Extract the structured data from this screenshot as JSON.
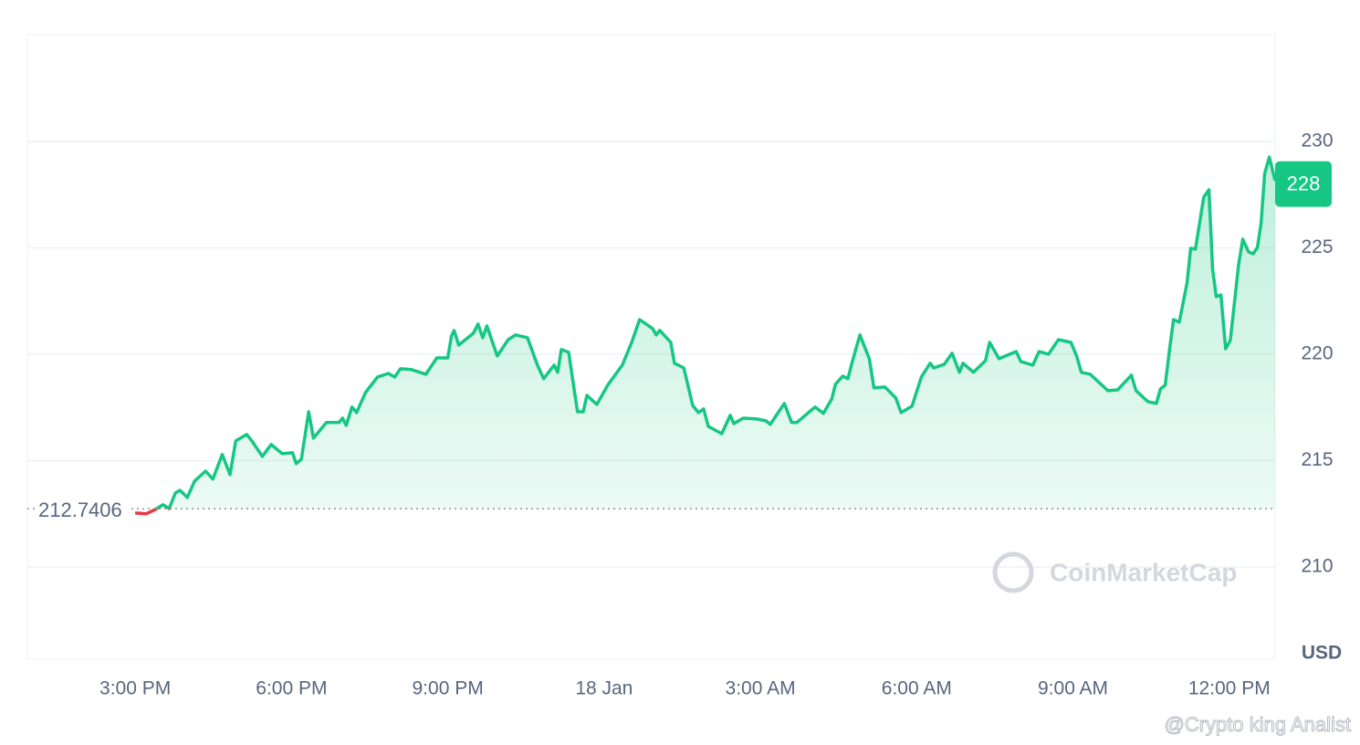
{
  "chart_data": {
    "type": "line",
    "x": [
      15.0,
      15.21,
      15.39,
      15.53,
      15.65,
      15.77,
      15.86,
      16.0,
      16.14,
      16.35,
      16.49,
      16.67,
      16.82,
      16.93,
      17.14,
      17.25,
      17.44,
      17.61,
      17.82,
      18.02,
      18.09,
      18.19,
      18.33,
      18.42,
      18.67,
      18.91,
      18.98,
      19.05,
      19.16,
      19.25,
      19.42,
      19.65,
      19.86,
      19.98,
      20.09,
      20.3,
      20.58,
      20.79,
      21.0,
      21.07,
      21.12,
      21.21,
      21.49,
      21.58,
      21.67,
      21.75,
      21.95,
      22.16,
      22.3,
      22.53,
      22.72,
      22.84,
      23.04,
      23.11,
      23.18,
      23.32,
      23.49,
      23.6,
      23.67,
      23.86,
      24.07,
      24.35,
      24.53,
      24.68,
      24.93,
      25.0,
      25.07,
      25.28,
      25.35,
      25.53,
      25.7,
      25.81,
      25.91,
      26.0,
      26.26,
      26.42,
      26.49,
      26.67,
      26.93,
      27.11,
      27.19,
      27.46,
      27.6,
      27.7,
      28.05,
      28.21,
      28.37,
      28.44,
      28.58,
      28.68,
      28.75,
      28.91,
      29.09,
      29.18,
      29.39,
      29.6,
      29.7,
      29.91,
      30.09,
      30.26,
      30.33,
      30.53,
      30.68,
      30.82,
      30.89,
      31.09,
      31.32,
      31.4,
      31.58,
      31.91,
      32.0,
      32.23,
      32.35,
      32.53,
      32.72,
      32.96,
      33.07,
      33.16,
      33.33,
      33.67,
      33.86,
      34.12,
      34.21,
      34.44,
      34.6,
      34.68,
      34.77,
      34.86,
      34.93,
      35.04,
      35.19,
      35.26,
      35.35,
      35.51,
      35.61,
      35.68,
      35.75,
      35.84,
      35.93,
      36.02,
      36.18,
      36.26,
      36.37,
      36.46,
      36.54,
      36.61,
      36.68,
      36.77,
      36.88
    ],
    "values": [
      212.54,
      212.5,
      212.71,
      212.93,
      212.75,
      213.48,
      213.61,
      213.27,
      214.04,
      214.51,
      214.13,
      215.29,
      214.34,
      215.93,
      216.23,
      215.89,
      215.2,
      215.76,
      215.33,
      215.37,
      214.86,
      215.07,
      217.3,
      216.06,
      216.79,
      216.79,
      217.0,
      216.66,
      217.52,
      217.26,
      218.2,
      218.93,
      219.1,
      218.93,
      219.32,
      219.28,
      219.06,
      219.83,
      219.83,
      220.86,
      221.12,
      220.43,
      220.99,
      221.42,
      220.78,
      221.33,
      219.92,
      220.69,
      220.91,
      220.78,
      219.49,
      218.85,
      219.49,
      219.15,
      220.22,
      220.09,
      217.3,
      217.3,
      218.07,
      217.64,
      218.55,
      219.49,
      220.56,
      221.63,
      221.21,
      220.91,
      221.12,
      220.56,
      219.58,
      219.36,
      217.6,
      217.26,
      217.43,
      216.61,
      216.27,
      217.13,
      216.74,
      217.0,
      216.96,
      216.87,
      216.7,
      217.69,
      216.79,
      216.79,
      217.52,
      217.22,
      217.9,
      218.59,
      218.97,
      218.85,
      219.53,
      220.91,
      219.79,
      218.42,
      218.46,
      217.94,
      217.26,
      217.56,
      218.93,
      219.58,
      219.36,
      219.53,
      220.05,
      219.15,
      219.58,
      219.15,
      219.7,
      220.56,
      219.79,
      220.13,
      219.66,
      219.49,
      220.13,
      220.0,
      220.69,
      220.56,
      219.92,
      219.15,
      219.06,
      218.29,
      218.33,
      219.02,
      218.29,
      217.77,
      217.69,
      218.37,
      218.55,
      220.35,
      221.63,
      221.51,
      223.35,
      224.98,
      224.94,
      227.38,
      227.73,
      224.0,
      222.71,
      222.79,
      220.26,
      220.65,
      224.21,
      225.41,
      224.81,
      224.72,
      225.02,
      226.14,
      228.5,
      229.27,
      228.16
    ],
    "color": "#16c784",
    "color_below": "#ea3943",
    "baseline": 212.7406,
    "current_price": 228,
    "xlim": [
      12.93,
      36.88
    ],
    "xticks": [
      {
        "value": 15,
        "label": "3:00 PM"
      },
      {
        "value": 18,
        "label": "6:00 PM"
      },
      {
        "value": 21,
        "label": "9:00 PM"
      },
      {
        "value": 24,
        "label": "18 Jan"
      },
      {
        "value": 27,
        "label": "3:00 AM"
      },
      {
        "value": 30,
        "label": "6:00 AM"
      },
      {
        "value": 33,
        "label": "9:00 AM"
      },
      {
        "value": 36,
        "label": "12:00 PM"
      }
    ],
    "ylim": [
      205.67,
      235.02
    ],
    "yticks": [
      210,
      215,
      220,
      225,
      230
    ],
    "grid": true,
    "y_unit": "USD",
    "watermark": "CoinMarketCap",
    "credit": "@Crypto king Analist"
  }
}
